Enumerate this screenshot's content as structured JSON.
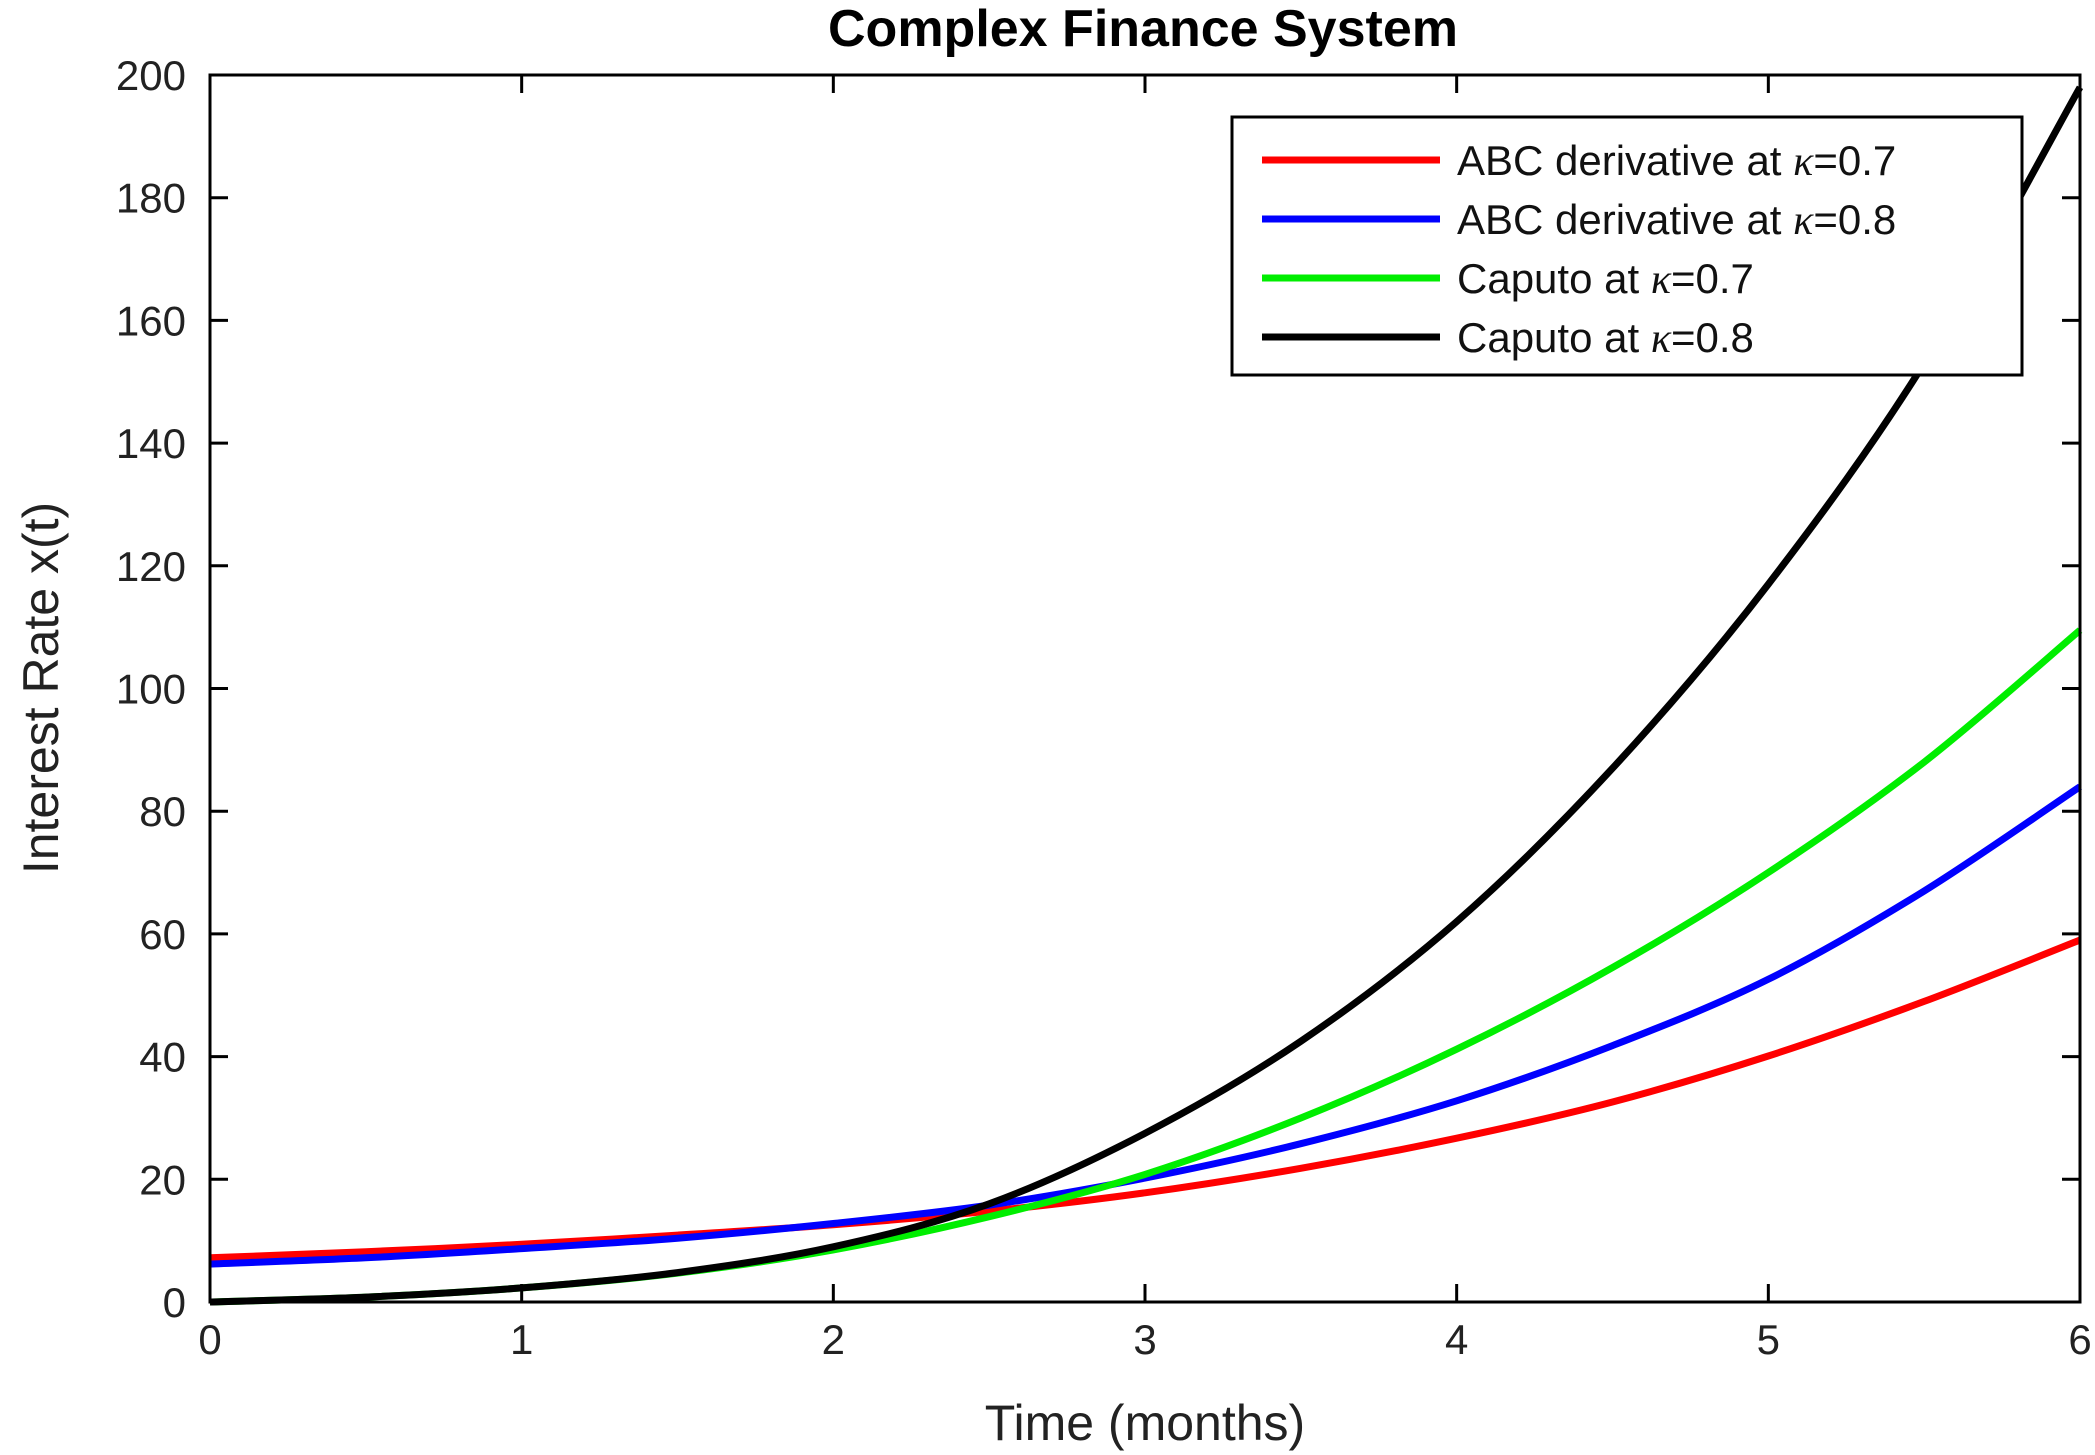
{
  "chart_data": {
    "type": "line",
    "title": "Complex Finance System",
    "xlabel": "Time (months)",
    "ylabel": "Interest Rate x(t)",
    "xlim": [
      0,
      6
    ],
    "ylim": [
      0,
      200
    ],
    "xticks": [
      "0",
      "1",
      "2",
      "3",
      "4",
      "5",
      "6"
    ],
    "yticks": [
      "0",
      "20",
      "40",
      "60",
      "80",
      "100",
      "120",
      "140",
      "160",
      "180",
      "200"
    ],
    "grid": false,
    "legend_position": "top-right",
    "x": [
      0,
      0.5,
      1,
      1.5,
      2,
      2.5,
      3,
      3.5,
      4,
      4.5,
      5,
      5.5,
      6
    ],
    "series": [
      {
        "name": "ABC derivative at κ=0.7",
        "legend_prefix": "ABC derivative at ",
        "legend_symbol": "κ",
        "legend_suffix": "=0.7",
        "color": "#ff0000",
        "values": [
          7.2,
          8.2,
          9.4,
          10.9,
          12.6,
          14.8,
          17.8,
          21.8,
          26.7,
          32.6,
          40.1,
          49.0,
          59.0
        ]
      },
      {
        "name": "ABC derivative at κ=0.8",
        "legend_prefix": "ABC derivative at ",
        "legend_symbol": "κ",
        "legend_suffix": "=0.8",
        "color": "#0000ff",
        "values": [
          6.2,
          7.2,
          8.7,
          10.4,
          12.8,
          15.8,
          20.2,
          25.8,
          32.8,
          41.8,
          52.6,
          67.0,
          84.0
        ]
      },
      {
        "name": "Caputo at κ=0.7",
        "legend_prefix": "Caputo at ",
        "legend_symbol": "κ",
        "legend_suffix": "=0.7",
        "color": "#00ee00",
        "values": [
          0,
          0.8,
          2.3,
          4.7,
          8.5,
          13.9,
          20.8,
          30.0,
          41.2,
          54.5,
          70.0,
          88.0,
          109.5
        ]
      },
      {
        "name": "Caputo at κ=0.8",
        "legend_prefix": "Caputo at ",
        "legend_symbol": "κ",
        "legend_suffix": "=0.8",
        "color": "#000000",
        "values": [
          0,
          0.8,
          2.3,
          4.8,
          9.0,
          16.0,
          27.5,
          42.5,
          62.0,
          87.0,
          117.0,
          153.0,
          198.0
        ]
      }
    ]
  }
}
